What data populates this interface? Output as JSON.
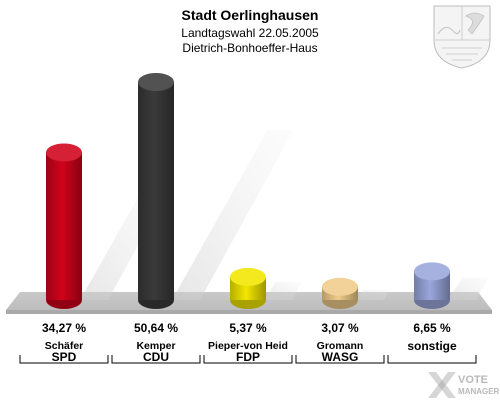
{
  "header": {
    "title": "Stadt Oerlinghausen",
    "subtitle": "Landtagswahl 22.05.2005",
    "location": "Dietrich-Bonhoeffer-Haus"
  },
  "branding": {
    "watermark_line1": "VOTE",
    "watermark_line2": "MANAGER",
    "crest_icon": "nrw-coat-of-arms-icon"
  },
  "chart_data": {
    "type": "bar",
    "title": "Stadt Oerlinghausen",
    "categories": [
      "SPD",
      "CDU",
      "FDP",
      "WASG",
      "sonstige"
    ],
    "candidates": [
      "Schäfer",
      "Kemper",
      "Pieper-von Heid",
      "Gromann",
      ""
    ],
    "values": [
      34.27,
      50.64,
      5.37,
      3.07,
      6.65
    ],
    "value_labels": [
      "34,27 %",
      "50,64 %",
      "5,37 %",
      "3,07 %",
      "6,65 %"
    ],
    "colors": [
      "#d0021b",
      "#3a3a3a",
      "#f2e600",
      "#f0cc8a",
      "#9aa6dc"
    ],
    "ylim": [
      0,
      50.64
    ],
    "grid": false,
    "legend": "none"
  }
}
